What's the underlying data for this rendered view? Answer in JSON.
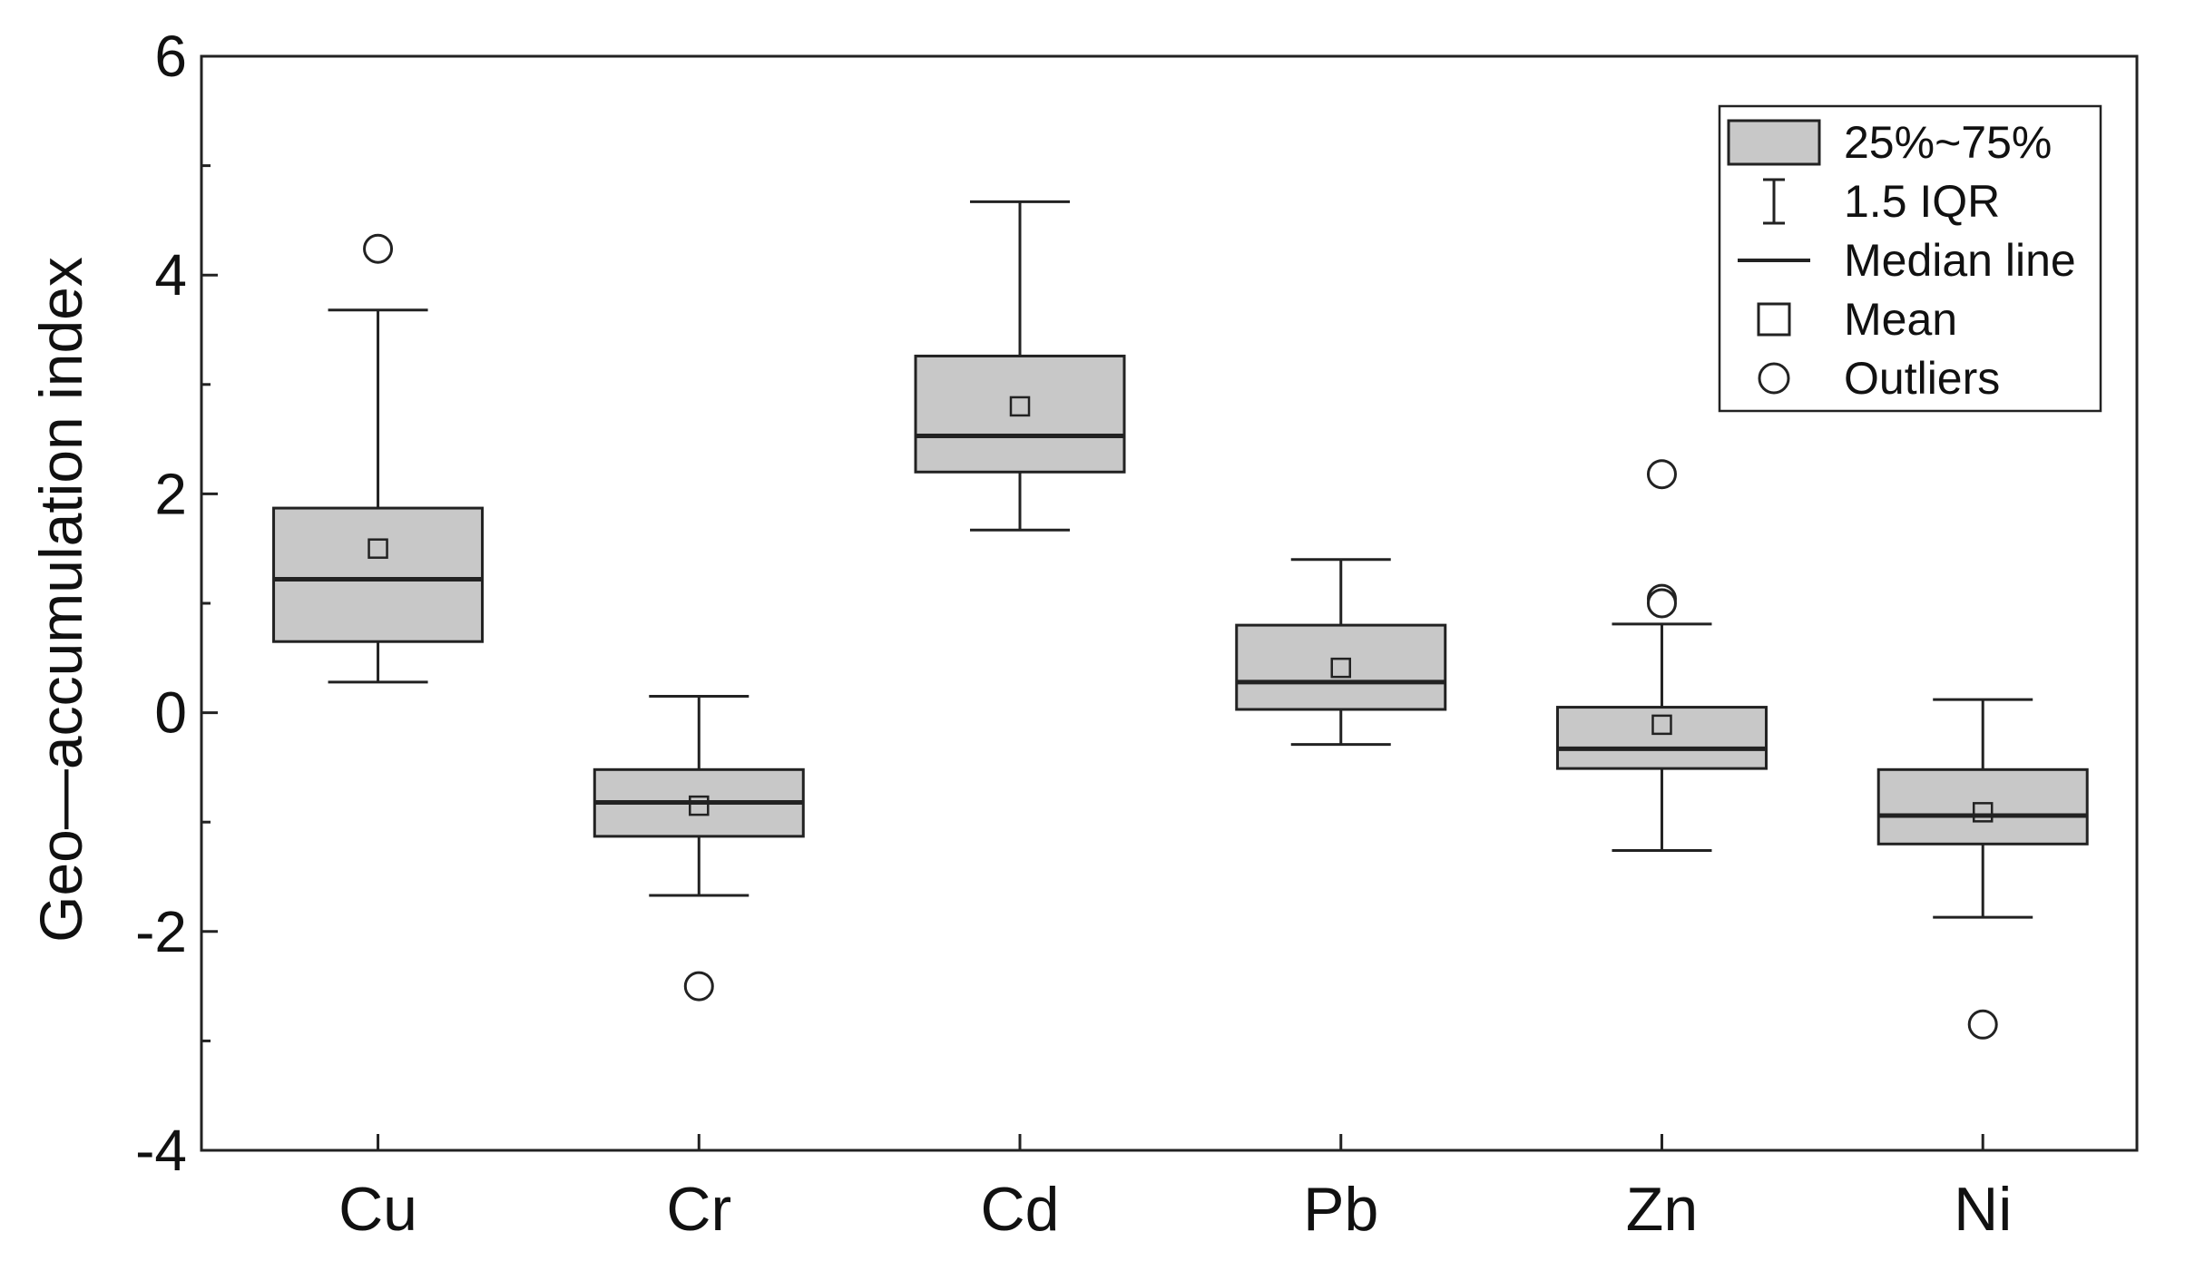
{
  "chart_data": {
    "type": "box",
    "ylabel": "Geo—accumulation index",
    "xlabel": "",
    "ylim": [
      -4,
      6
    ],
    "yticks": [
      -4,
      -2,
      0,
      2,
      4,
      6
    ],
    "ytick_labels": [
      "-4",
      "-2",
      "0",
      "2",
      "4",
      "6"
    ],
    "categories": [
      "Cu",
      "Cr",
      "Cd",
      "Pb",
      "Zn",
      "Ni"
    ],
    "boxes": [
      {
        "name": "Cu",
        "whisker_low": 0.28,
        "q1": 0.65,
        "median": 1.22,
        "q3": 1.87,
        "whisker_high": 3.68,
        "mean": 1.5,
        "outliers": [
          4.24
        ]
      },
      {
        "name": "Cr",
        "whisker_low": -1.67,
        "q1": -1.13,
        "median": -0.82,
        "q3": -0.52,
        "whisker_high": 0.15,
        "mean": -0.85,
        "outliers": [
          -2.5
        ]
      },
      {
        "name": "Cd",
        "whisker_low": 1.67,
        "q1": 2.2,
        "median": 2.53,
        "q3": 3.26,
        "whisker_high": 4.67,
        "mean": 2.8,
        "outliers": []
      },
      {
        "name": "Pb",
        "whisker_low": -0.29,
        "q1": 0.03,
        "median": 0.28,
        "q3": 0.8,
        "whisker_high": 1.4,
        "mean": 0.41,
        "outliers": []
      },
      {
        "name": "Zn",
        "whisker_low": -1.26,
        "q1": -0.51,
        "median": -0.33,
        "q3": 0.05,
        "whisker_high": 0.81,
        "mean": -0.11,
        "outliers": [
          2.18,
          1.04,
          1.0
        ]
      },
      {
        "name": "Ni",
        "whisker_low": -1.87,
        "q1": -1.2,
        "median": -0.94,
        "q3": -0.52,
        "whisker_high": 0.12,
        "mean": -0.91,
        "outliers": [
          -2.85
        ]
      }
    ],
    "legend": {
      "placement": "top-right",
      "items": [
        {
          "label": "25%~75%",
          "symbol": "box"
        },
        {
          "label": "1.5 IQR",
          "symbol": "whisker"
        },
        {
          "label": "Median line",
          "symbol": "line"
        },
        {
          "label": "Mean",
          "symbol": "square"
        },
        {
          "label": "Outliers",
          "symbol": "circle"
        }
      ]
    },
    "grid": false,
    "colors": {
      "box_fill": "#c8c8c8",
      "stroke": "#222222",
      "marker_fill": "#ffffff"
    }
  }
}
